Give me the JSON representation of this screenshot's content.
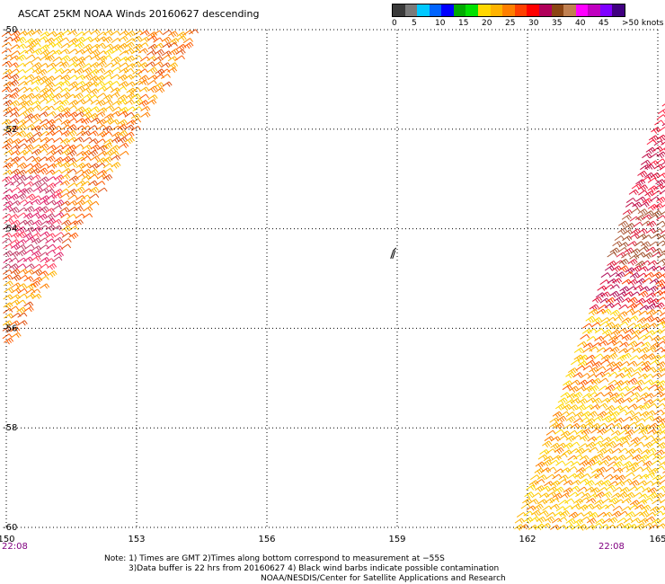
{
  "title": "ASCAT 25KM NOAA Winds 20160627 descending",
  "legend": {
    "colors": [
      "#3a3a3a",
      "#7a7a7a",
      "#00c8ff",
      "#0064ff",
      "#0000ff",
      "#00aa00",
      "#00e000",
      "#ffd700",
      "#ffb300",
      "#ff7f00",
      "#ff4000",
      "#ff0000",
      "#b0005a",
      "#8b4513",
      "#c08050",
      "#ff00ff",
      "#c000c0",
      "#7f00ff",
      "#400080"
    ],
    "ticks": [
      "0",
      "5",
      "10",
      "15",
      "20",
      "25",
      "30",
      "35",
      "40",
      "45",
      ">50 knots"
    ],
    "tick_values": [
      0,
      5,
      10,
      15,
      20,
      25,
      30,
      35,
      40,
      45,
      50
    ]
  },
  "map": {
    "lon_range": [
      150,
      165
    ],
    "lat_range": [
      -60,
      -50
    ],
    "lon_ticks": [
      "150",
      "153",
      "156",
      "159",
      "162",
      "165"
    ],
    "lon_tick_values": [
      150,
      153,
      156,
      159,
      162,
      165
    ],
    "lat_ticks": [
      "-50",
      "-52",
      "-54",
      "-56",
      "-58",
      "-60"
    ],
    "lat_tick_values": [
      -50,
      -52,
      -54,
      -56,
      -58,
      -60
    ],
    "time_left": "22:08",
    "time_right": "22:08",
    "time_color": "#800080"
  },
  "notes": {
    "line1": "Note: 1) Times are GMT 2)Times along bottom correspond to measurement at −55S",
    "line2": "3)Data buffer is 22 hrs from 20160627 4) Black wind barbs indicate possible contamination",
    "line3": "NOAA/NESDIS/Center for Satellite Applications and Research"
  }
}
